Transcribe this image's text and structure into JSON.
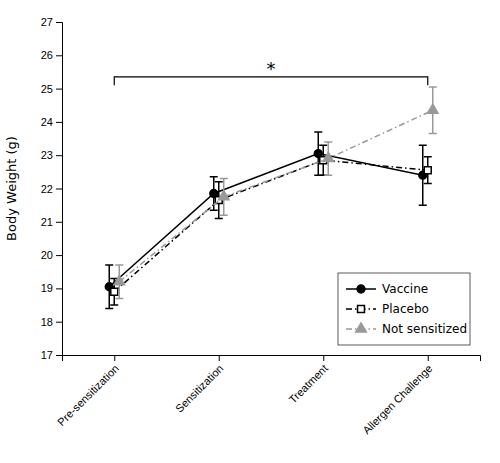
{
  "chart_data": {
    "type": "line",
    "ylabel": "Body Weight (g)",
    "categories": [
      "Pre-sensitization",
      "Sensitization",
      "Treatment",
      "Allergen Challenge"
    ],
    "series": [
      {
        "name": "Vaccine",
        "color": "#000000",
        "marker": "circle",
        "line_style": "solid",
        "values": [
          19.05,
          21.85,
          23.05,
          22.4
        ],
        "errors": [
          0.65,
          0.5,
          0.65,
          0.9
        ]
      },
      {
        "name": "Placebo",
        "color": "#000000",
        "marker": "square",
        "line_style": "dashdot",
        "values": [
          18.9,
          21.65,
          22.85,
          22.55
        ],
        "errors": [
          0.4,
          0.55,
          0.45,
          0.4
        ]
      },
      {
        "name": "Not sensitized",
        "color": "#999999",
        "marker": "triangle",
        "line_style": "dashdot",
        "values": [
          19.2,
          21.75,
          22.9,
          24.35
        ],
        "errors": [
          0.5,
          0.55,
          0.5,
          0.7
        ]
      }
    ],
    "ylim": [
      17,
      27
    ],
    "yticks": [
      17,
      18,
      19,
      20,
      21,
      22,
      23,
      24,
      25,
      26,
      27
    ],
    "legend": "lower right",
    "annotations": [
      {
        "text": "*",
        "from": "Pre-sensitization",
        "to": "Allergen Challenge",
        "y": 25.35,
        "drop": 0.25
      }
    ]
  }
}
